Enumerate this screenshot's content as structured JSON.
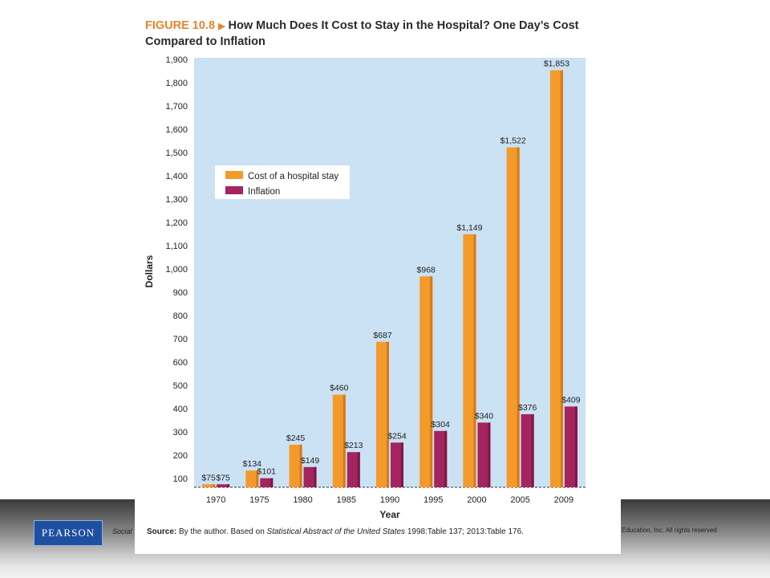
{
  "colors": {
    "plot_bg": "#cbe1f4",
    "hospital": "#f39a2b",
    "hospital_side": "#d77918",
    "inflation": "#a3245e",
    "inflation_side": "#7e1845",
    "fig_accent": "#e8842a"
  },
  "figure": {
    "number": "FIGURE 10.8",
    "arrow_icon": "play-triangle",
    "title": "How Much Does It Cost to Stay in the Hospital? One Day’s Cost Compared to Inflation"
  },
  "chart_data": {
    "type": "bar",
    "title": "How Much Does It Cost to Stay in the Hospital? One Day’s Cost Compared to Inflation",
    "xlabel": "Year",
    "ylabel": "Dollars",
    "ylim": [
      100,
      1900
    ],
    "yticks": [
      "100",
      "200",
      "300",
      "400",
      "500",
      "600",
      "700",
      "800",
      "900",
      "1,000",
      "1,100",
      "1,200",
      "1,300",
      "1,400",
      "1,500",
      "1,600",
      "1,700",
      "1,800",
      "1,900"
    ],
    "categories": [
      "1970",
      "1975",
      "1980",
      "1985",
      "1990",
      "1995",
      "2000",
      "2005",
      "2009"
    ],
    "series": [
      {
        "name": "Cost of a hospital stay",
        "values": [
          75,
          134,
          245,
          460,
          687,
          968,
          1149,
          1522,
          1853
        ],
        "labels": [
          "$75",
          "$134",
          "$245",
          "$460",
          "$687",
          "$968",
          "$1,149",
          "$1,522",
          "$1,853"
        ]
      },
      {
        "name": "Inflation",
        "values": [
          75,
          101,
          149,
          213,
          254,
          304,
          340,
          376,
          409
        ],
        "labels": [
          "$75",
          "$101",
          "$149",
          "$213",
          "$254",
          "$304",
          "$340",
          "$376",
          "$409"
        ]
      }
    ],
    "legend_position": "top-left",
    "grid": false
  },
  "source": {
    "prefix": "Source:",
    "text1": " By the author. Based on ",
    "italic": "Statistical Abstract of the United States",
    "text2": " 1998:Table 137; 2013:Table 176."
  },
  "footer": {
    "logo_text": "PEARSON",
    "left_text": "Social",
    "right_text": "Education, Inc.  All rights reserved"
  }
}
